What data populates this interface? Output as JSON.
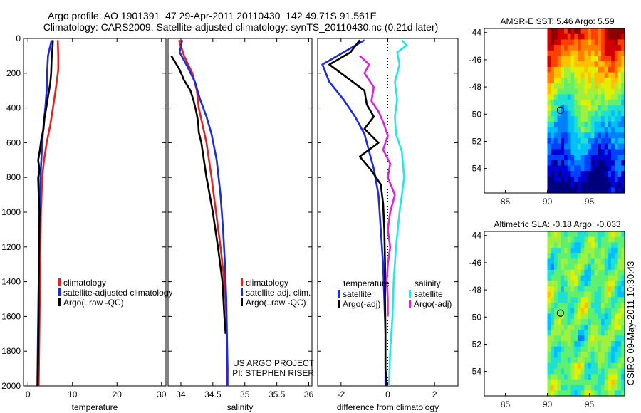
{
  "header": {
    "line1": "Argo profile: AO 1901391_47 29-Apr-2011 20110430_142 49.71S 91.561E",
    "line2": "Climatology: CARS2009. Satellite-adjusted climatology: synTS_20110430.nc (0.21d later)"
  },
  "side_stamp": "CSIRO 09-May-2011 10:30:43",
  "colors": {
    "red": "#e8201e",
    "blue": "#1a2be0",
    "black": "#000000",
    "cyan": "#22e8e8",
    "magenta": "#e020e0"
  },
  "depth_axis": {
    "ylim": [
      0,
      2000
    ],
    "reversed": true,
    "ticks": [
      0,
      200,
      400,
      600,
      800,
      1000,
      1200,
      1400,
      1600,
      1800,
      2000
    ]
  },
  "chart_data": [
    {
      "id": "temperature",
      "type": "line",
      "xlabel": "temperature",
      "xlim": [
        -1,
        31
      ],
      "xticks": [
        0,
        10,
        20,
        30
      ],
      "legend": [
        "climatology",
        "satellite-adjusted climatology",
        "Argo(..raw -QC)"
      ],
      "series": [
        {
          "name": "climatology",
          "color": "red",
          "depth": [
            10,
            100,
            180,
            300,
            400,
            500,
            600,
            700,
            800,
            1000,
            1200,
            1400,
            1600,
            1800,
            2000
          ],
          "values": [
            6.7,
            6.8,
            6.8,
            6.2,
            5.6,
            5.0,
            4.2,
            3.6,
            3.2,
            2.9,
            2.8,
            2.7,
            2.6,
            2.5,
            2.4
          ]
        },
        {
          "name": "satellite-adjusted climatology",
          "color": "blue",
          "depth": [
            10,
            100,
            200,
            300,
            400,
            500,
            600,
            700,
            800,
            1000,
            1200,
            1400,
            1600,
            1800,
            2000
          ],
          "values": [
            5.3,
            4.5,
            4.3,
            4.2,
            3.9,
            3.5,
            3.2,
            3.0,
            2.8,
            2.6,
            2.5,
            2.4,
            2.3,
            2.2,
            2.1
          ]
        },
        {
          "name": "Argo(..raw -QC)",
          "color": "black",
          "depth": [
            10,
            60,
            120,
            200,
            260,
            320,
            400,
            460,
            520,
            580,
            640,
            700,
            760,
            800,
            900,
            1000,
            1200,
            1400,
            1600,
            1800,
            2000
          ],
          "values": [
            5.6,
            5.5,
            5.3,
            5.2,
            5.0,
            4.6,
            4.1,
            3.7,
            3.5,
            3.0,
            2.7,
            2.3,
            2.6,
            2.3,
            2.4,
            2.6,
            2.5,
            2.4,
            2.4,
            2.3,
            2.2
          ]
        }
      ]
    },
    {
      "id": "salinity",
      "type": "line",
      "xlabel": "salinity",
      "xlim": [
        33.8,
        36.05
      ],
      "xticks": [
        34,
        34.5,
        35,
        35.5,
        36
      ],
      "legend": [
        "climatology",
        "satellite adj. clim.",
        "Argo(..raw -QC)"
      ],
      "annotation": [
        "US ARGO PROJECT",
        "PI: STEPHEN RISER"
      ],
      "series": [
        {
          "name": "climatology",
          "color": "red",
          "depth": [
            10,
            100,
            200,
            300,
            400,
            500,
            600,
            800,
            1000,
            1200,
            1400,
            1600,
            1800,
            2000
          ],
          "values": [
            33.97,
            34.05,
            34.18,
            34.25,
            34.28,
            34.34,
            34.4,
            34.48,
            34.55,
            34.62,
            34.68,
            34.71,
            34.72,
            34.72
          ]
        },
        {
          "name": "satellite adj. clim.",
          "color": "blue",
          "depth": [
            10,
            80,
            160,
            250,
            350,
            450,
            550,
            700,
            900,
            1100,
            1300,
            1500,
            1700,
            1900,
            2000
          ],
          "values": [
            34.02,
            33.98,
            34.1,
            34.22,
            34.3,
            34.4,
            34.48,
            34.56,
            34.62,
            34.66,
            34.69,
            34.71,
            34.72,
            34.73,
            34.73
          ]
        },
        {
          "name": "Argo(..raw -QC)",
          "color": "black",
          "depth": [
            100,
            130,
            180,
            240,
            300,
            360,
            420,
            480,
            540,
            600,
            700,
            800,
            900,
            1000,
            1200,
            1400,
            1600,
            1700
          ],
          "values": [
            33.85,
            33.9,
            33.98,
            34.05,
            34.15,
            34.2,
            34.24,
            34.27,
            34.28,
            34.32,
            34.36,
            34.4,
            34.45,
            34.5,
            34.58,
            34.65,
            34.68,
            34.7
          ]
        }
      ]
    },
    {
      "id": "difference",
      "type": "line",
      "xlabel": "difference from climatology",
      "xlim": [
        -3,
        3
      ],
      "xticks": [
        -2,
        0,
        2
      ],
      "legend": [
        {
          "group": "temperature",
          "label": "satellite",
          "color": "blue"
        },
        {
          "group": "temperature",
          "label": "Argo(-adj)",
          "color": "black"
        },
        {
          "group": "salinity",
          "label": "satellite",
          "color": "cyan"
        },
        {
          "group": "salinity",
          "label": "Argo(-adj)",
          "color": "magenta"
        }
      ],
      "legend_headers": [
        "temperature",
        "salinity"
      ],
      "series": [
        {
          "name": "temperature satellite",
          "color": "blue",
          "depth": [
            10,
            150,
            250,
            350,
            450,
            550,
            650,
            750,
            900,
            1100,
            1300,
            1500,
            1700,
            1900,
            2000
          ],
          "values": [
            -1.0,
            -2.8,
            -2.5,
            -1.9,
            -1.4,
            -1.0,
            -0.8,
            -0.6,
            -0.4,
            -0.3,
            -0.2,
            -0.15,
            -0.1,
            -0.1,
            -0.1
          ]
        },
        {
          "name": "temperature Argo(-adj)",
          "color": "black",
          "depth": [
            10,
            80,
            150,
            220,
            300,
            380,
            450,
            520,
            600,
            680,
            760,
            840,
            950,
            1100,
            1300,
            1500,
            1700,
            1900,
            2000
          ],
          "values": [
            -1.2,
            -1.6,
            -2.5,
            -1.8,
            -1.0,
            -0.9,
            -0.6,
            -1.0,
            -0.4,
            -1.2,
            -0.7,
            -0.3,
            -0.2,
            -0.15,
            -0.12,
            -0.12,
            -0.1,
            -0.1,
            -0.05
          ]
        },
        {
          "name": "salinity satellite",
          "color": "cyan",
          "depth": [
            10,
            40,
            80,
            150,
            250,
            350,
            450,
            550,
            650,
            800,
            1000,
            1200,
            1400,
            1600,
            1800,
            2000
          ],
          "values": [
            0.6,
            0.8,
            0.4,
            0.5,
            0.3,
            0.4,
            0.3,
            0.35,
            0.6,
            0.7,
            0.5,
            0.35,
            0.25,
            0.2,
            0.1,
            0.05
          ]
        },
        {
          "name": "salinity Argo(-adj)",
          "color": "magenta",
          "depth": [
            100,
            150,
            200,
            280,
            360,
            420,
            480,
            560,
            640,
            720,
            800,
            900,
            1000,
            1100,
            1200,
            1300,
            1400,
            1500,
            1600
          ],
          "values": [
            -1.2,
            -0.8,
            -1.0,
            -0.6,
            -0.7,
            -0.4,
            -0.2,
            0.0,
            -0.2,
            0.1,
            0.0,
            0.3,
            0.1,
            0.0,
            0.1,
            0.0,
            -0.05,
            0.0,
            0.0
          ]
        }
      ]
    },
    {
      "id": "sst_map",
      "type": "heatmap",
      "title": "AMSR-E SST: 5.46 Argo: 5.59",
      "xlim": [
        82.5,
        99.2
      ],
      "ylim": [
        -55.8,
        -43.7
      ],
      "xticks": [
        85,
        90,
        95
      ],
      "yticks": [
        -44,
        -46,
        -48,
        -50,
        -52,
        -54
      ],
      "data_xlim": [
        90,
        99.2
      ],
      "marker": {
        "lon": 91.561,
        "lat": -49.71
      },
      "colormap": [
        "#00007f",
        "#0000d0",
        "#0040ff",
        "#0080ff",
        "#00c0ff",
        "#20e0d0",
        "#60f070",
        "#a0f040",
        "#e0f000",
        "#ffc000",
        "#ff8000",
        "#ff4000",
        "#d00000",
        "#8f0000"
      ]
    },
    {
      "id": "sla_map",
      "type": "heatmap",
      "title": "Altimetric SLA: -0.18 Argo: -0.033",
      "xlim": [
        82.5,
        99.2
      ],
      "ylim": [
        -55.8,
        -43.7
      ],
      "xticks": [
        85,
        90,
        95
      ],
      "yticks": [
        -44,
        -46,
        -48,
        -50,
        -52,
        -54
      ],
      "data_xlim": [
        90,
        99.2
      ],
      "marker": {
        "lon": 91.561,
        "lat": -49.71
      },
      "colormap": [
        "#0040ff",
        "#0080ff",
        "#00c0ff",
        "#20e0d0",
        "#60f070",
        "#a0f040",
        "#e0f000",
        "#ffc000",
        "#ff8000"
      ]
    }
  ]
}
